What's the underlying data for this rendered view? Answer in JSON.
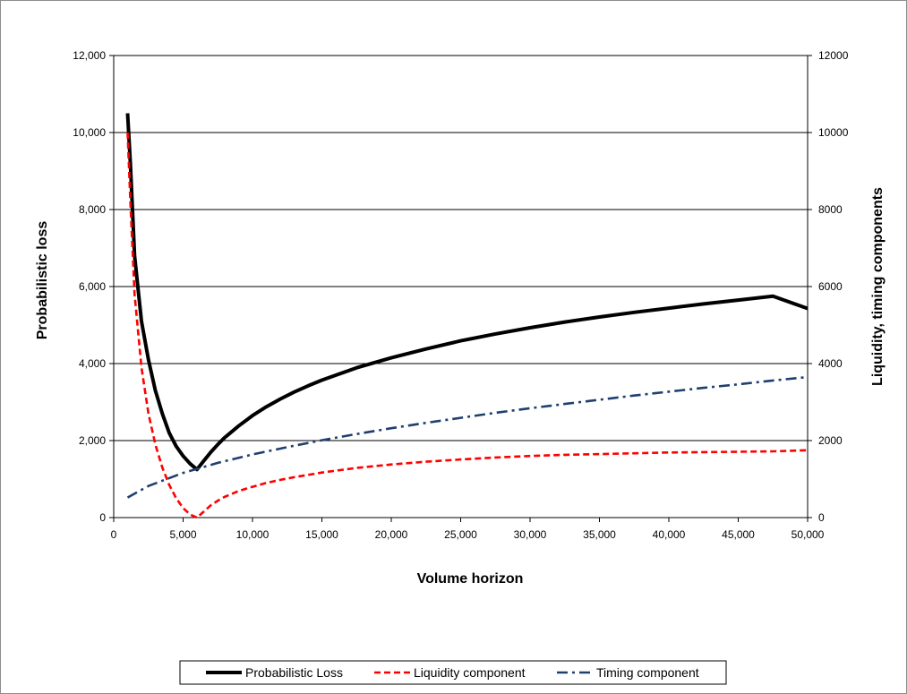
{
  "chart_data": {
    "type": "line",
    "title": "",
    "xlabel": "Volume horizon",
    "ylabel_left": "Probabilistic loss",
    "ylabel_right": "Liquidity, timing components",
    "xlim": [
      0,
      50000
    ],
    "ylim_left": [
      0,
      12000
    ],
    "ylim_right": [
      0,
      12000
    ],
    "x_ticks": [
      "0",
      "5,000",
      "10,000",
      "15,000",
      "20,000",
      "25,000",
      "30,000",
      "35,000",
      "40,000",
      "45,000",
      "50,000"
    ],
    "y_left_ticks": [
      "0",
      "2,000",
      "4,000",
      "6,000",
      "8,000",
      "10,000",
      "12,000"
    ],
    "y_right_ticks": [
      "0",
      "2000",
      "4000",
      "6000",
      "8000",
      "10000",
      "12000"
    ],
    "grid": "horizontal",
    "legend_position": "bottom",
    "series": [
      {
        "name": "Probabilistic Loss",
        "axis": "left",
        "color": "#000000",
        "style": "solid",
        "x": [
          1000,
          1200,
          1500,
          2000,
          2500,
          3000,
          3500,
          4000,
          4500,
          5000,
          5500,
          6000,
          6500,
          7000,
          7500,
          8000,
          9000,
          10000,
          11000,
          12000,
          13000,
          14000,
          15000,
          17500,
          20000,
          22500,
          25000,
          27500,
          30000,
          32500,
          35000,
          37500,
          40000,
          42500,
          45000,
          47500,
          50000
        ],
        "values": [
          10500,
          9200,
          6800,
          5100,
          4100,
          3300,
          2700,
          2200,
          1850,
          1600,
          1400,
          1250,
          1480,
          1700,
          1900,
          2080,
          2380,
          2650,
          2880,
          3080,
          3260,
          3420,
          3570,
          3890,
          4150,
          4380,
          4590,
          4770,
          4930,
          5080,
          5210,
          5330,
          5440,
          5550,
          5650,
          5750,
          5430
        ]
      },
      {
        "name": "Liquidity component",
        "axis": "right",
        "color": "#ff0000",
        "style": "dashed",
        "x": [
          1000,
          1200,
          1500,
          2000,
          2500,
          3000,
          3500,
          4000,
          4500,
          5000,
          5500,
          6000,
          6500,
          7000,
          7500,
          8000,
          9000,
          10000,
          11000,
          12000,
          13000,
          14000,
          15000,
          17500,
          20000,
          22500,
          25000,
          27500,
          30000,
          32500,
          35000,
          37500,
          40000,
          42500,
          45000,
          47500,
          50000
        ],
        "values": [
          10000,
          8200,
          5800,
          3900,
          2700,
          1900,
          1300,
          850,
          500,
          250,
          80,
          0,
          160,
          320,
          440,
          540,
          690,
          800,
          900,
          980,
          1050,
          1110,
          1170,
          1290,
          1380,
          1450,
          1510,
          1560,
          1600,
          1630,
          1650,
          1670,
          1690,
          1700,
          1710,
          1720,
          1750
        ]
      },
      {
        "name": "Timing component",
        "axis": "right",
        "color": "#1f3f6e",
        "style": "dashdot",
        "x": [
          1000,
          2500,
          5000,
          7500,
          10000,
          12500,
          15000,
          17500,
          20000,
          22500,
          25000,
          27500,
          30000,
          32500,
          35000,
          37500,
          40000,
          42500,
          45000,
          47500,
          50000
        ],
        "values": [
          520,
          820,
          1160,
          1420,
          1640,
          1830,
          2010,
          2170,
          2320,
          2460,
          2590,
          2720,
          2840,
          2950,
          3060,
          3170,
          3270,
          3370,
          3460,
          3560,
          3650
        ]
      }
    ]
  }
}
